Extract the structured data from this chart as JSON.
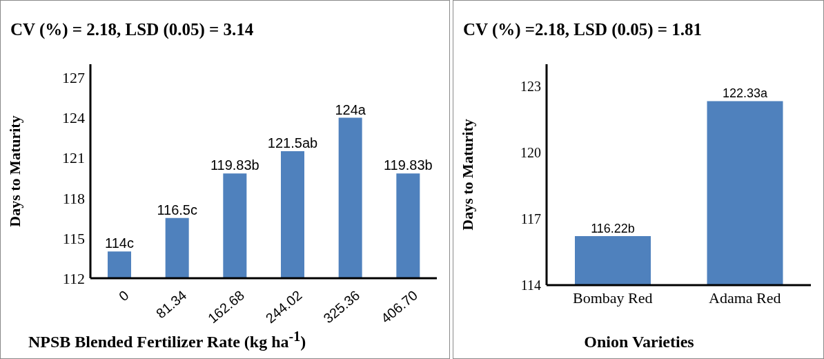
{
  "chart_data": [
    {
      "type": "bar",
      "title": "CV (%) = 2.18, LSD (0.05) = 3.14",
      "xlabel": "NPSB Blended Fertilizer Rate (kg ha$^{-1}$)",
      "ylabel": "Days to Maturity",
      "categories": [
        "0",
        "81.34",
        "162.68",
        "244.02",
        "325.36",
        "406.70"
      ],
      "values": [
        114,
        116.5,
        119.83,
        121.5,
        124,
        119.83
      ],
      "value_labels": [
        "114c",
        "116.5c",
        "119.83b",
        "121.5ab",
        "124a",
        "119.83b"
      ],
      "color": "#4f81bd",
      "ylim": [
        112,
        128
      ],
      "yticks": [
        112,
        115,
        118,
        121,
        124,
        127
      ],
      "grid": false,
      "legend": false
    },
    {
      "type": "bar",
      "title": "CV (%) =2.18, LSD (0.05) = 1.81",
      "xlabel": "Onion Varieties",
      "ylabel": "Days to Maturity",
      "categories": [
        "Bombay Red",
        "Adama Red"
      ],
      "values": [
        116.22,
        122.33
      ],
      "value_labels": [
        "116.22b",
        "122.33a"
      ],
      "color": "#4f81bd",
      "ylim": [
        114,
        124
      ],
      "yticks": [
        114,
        117,
        120,
        123
      ],
      "grid": false,
      "legend": false
    }
  ]
}
